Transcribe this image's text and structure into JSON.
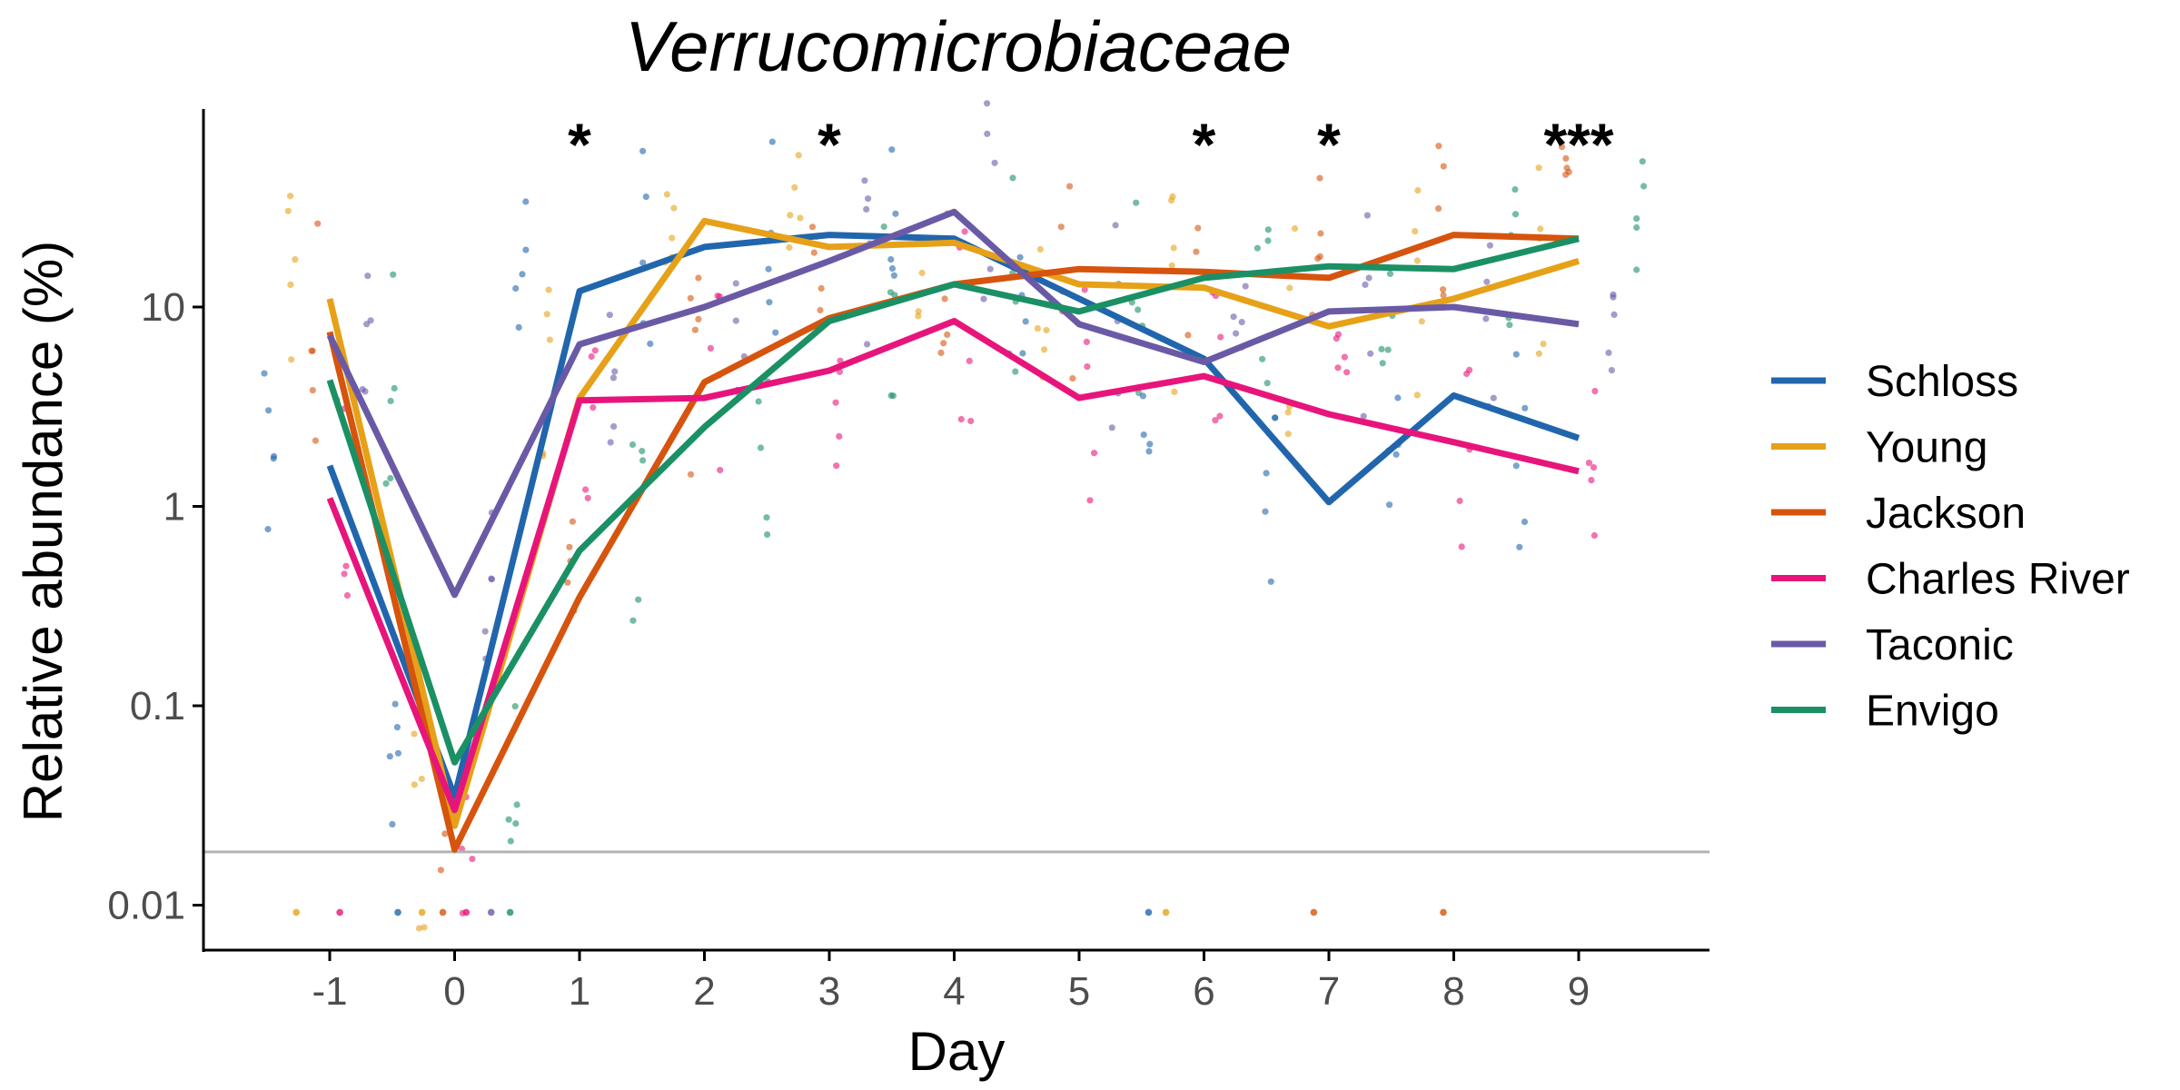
{
  "chart_data": {
    "type": "line",
    "title": "Verrucomicrobiaceae",
    "xlabel": "Day",
    "ylabel": "Relative abundance (%)",
    "x_scale": "linear",
    "y_scale": "log10",
    "xlim": [
      -2,
      10
    ],
    "ylim": [
      0.006,
      100
    ],
    "x_ticks": [
      -1,
      0,
      1,
      2,
      3,
      4,
      5,
      6,
      7,
      8,
      9
    ],
    "x_tick_labels": [
      "-1",
      "0",
      "1",
      "2",
      "3",
      "4",
      "5",
      "6",
      "7",
      "8",
      "9"
    ],
    "y_ticks": [
      0.01,
      0.1,
      1,
      10
    ],
    "y_tick_labels": [
      "0.01",
      "0.1",
      "1",
      "10"
    ],
    "limit_of_detection": 0.0185,
    "grid": false,
    "legend_position": "right",
    "significance": [
      {
        "day": 1,
        "label": "*"
      },
      {
        "day": 3,
        "label": "*"
      },
      {
        "day": 6,
        "label": "*"
      },
      {
        "day": 7,
        "label": "*"
      },
      {
        "day": 9,
        "label": "***"
      }
    ],
    "x": [
      -1,
      0,
      1,
      2,
      3,
      4,
      5,
      6,
      7,
      8,
      9
    ],
    "series": [
      {
        "name": "Schloss",
        "color": "#2166ac",
        "values": [
          1.6,
          0.035,
          12,
          20,
          23,
          22,
          11,
          5.5,
          1.05,
          3.6,
          2.2
        ]
      },
      {
        "name": "Young",
        "color": "#e6a118",
        "values": [
          11,
          0.025,
          3.5,
          27,
          20,
          21,
          13,
          12.5,
          8,
          11,
          17
        ]
      },
      {
        "name": "Jackson",
        "color": "#d6540d",
        "values": [
          7.5,
          0.019,
          0.35,
          4.2,
          8.8,
          13,
          15.5,
          15,
          14,
          23,
          22
        ]
      },
      {
        "name": "Charles River",
        "color": "#e7157b",
        "values": [
          1.1,
          0.03,
          3.4,
          3.5,
          4.8,
          8.5,
          3.5,
          4.5,
          2.9,
          2.1,
          1.5
        ]
      },
      {
        "name": "Taconic",
        "color": "#6a5aa6",
        "values": [
          7.2,
          0.36,
          6.5,
          10,
          17,
          30,
          8.2,
          5.3,
          9.5,
          10,
          8.2
        ]
      },
      {
        "name": "Envigo",
        "color": "#1b9064",
        "values": [
          4.3,
          0.052,
          0.6,
          2.5,
          8.5,
          13,
          9.5,
          14,
          16,
          15.5,
          22
        ]
      }
    ]
  }
}
